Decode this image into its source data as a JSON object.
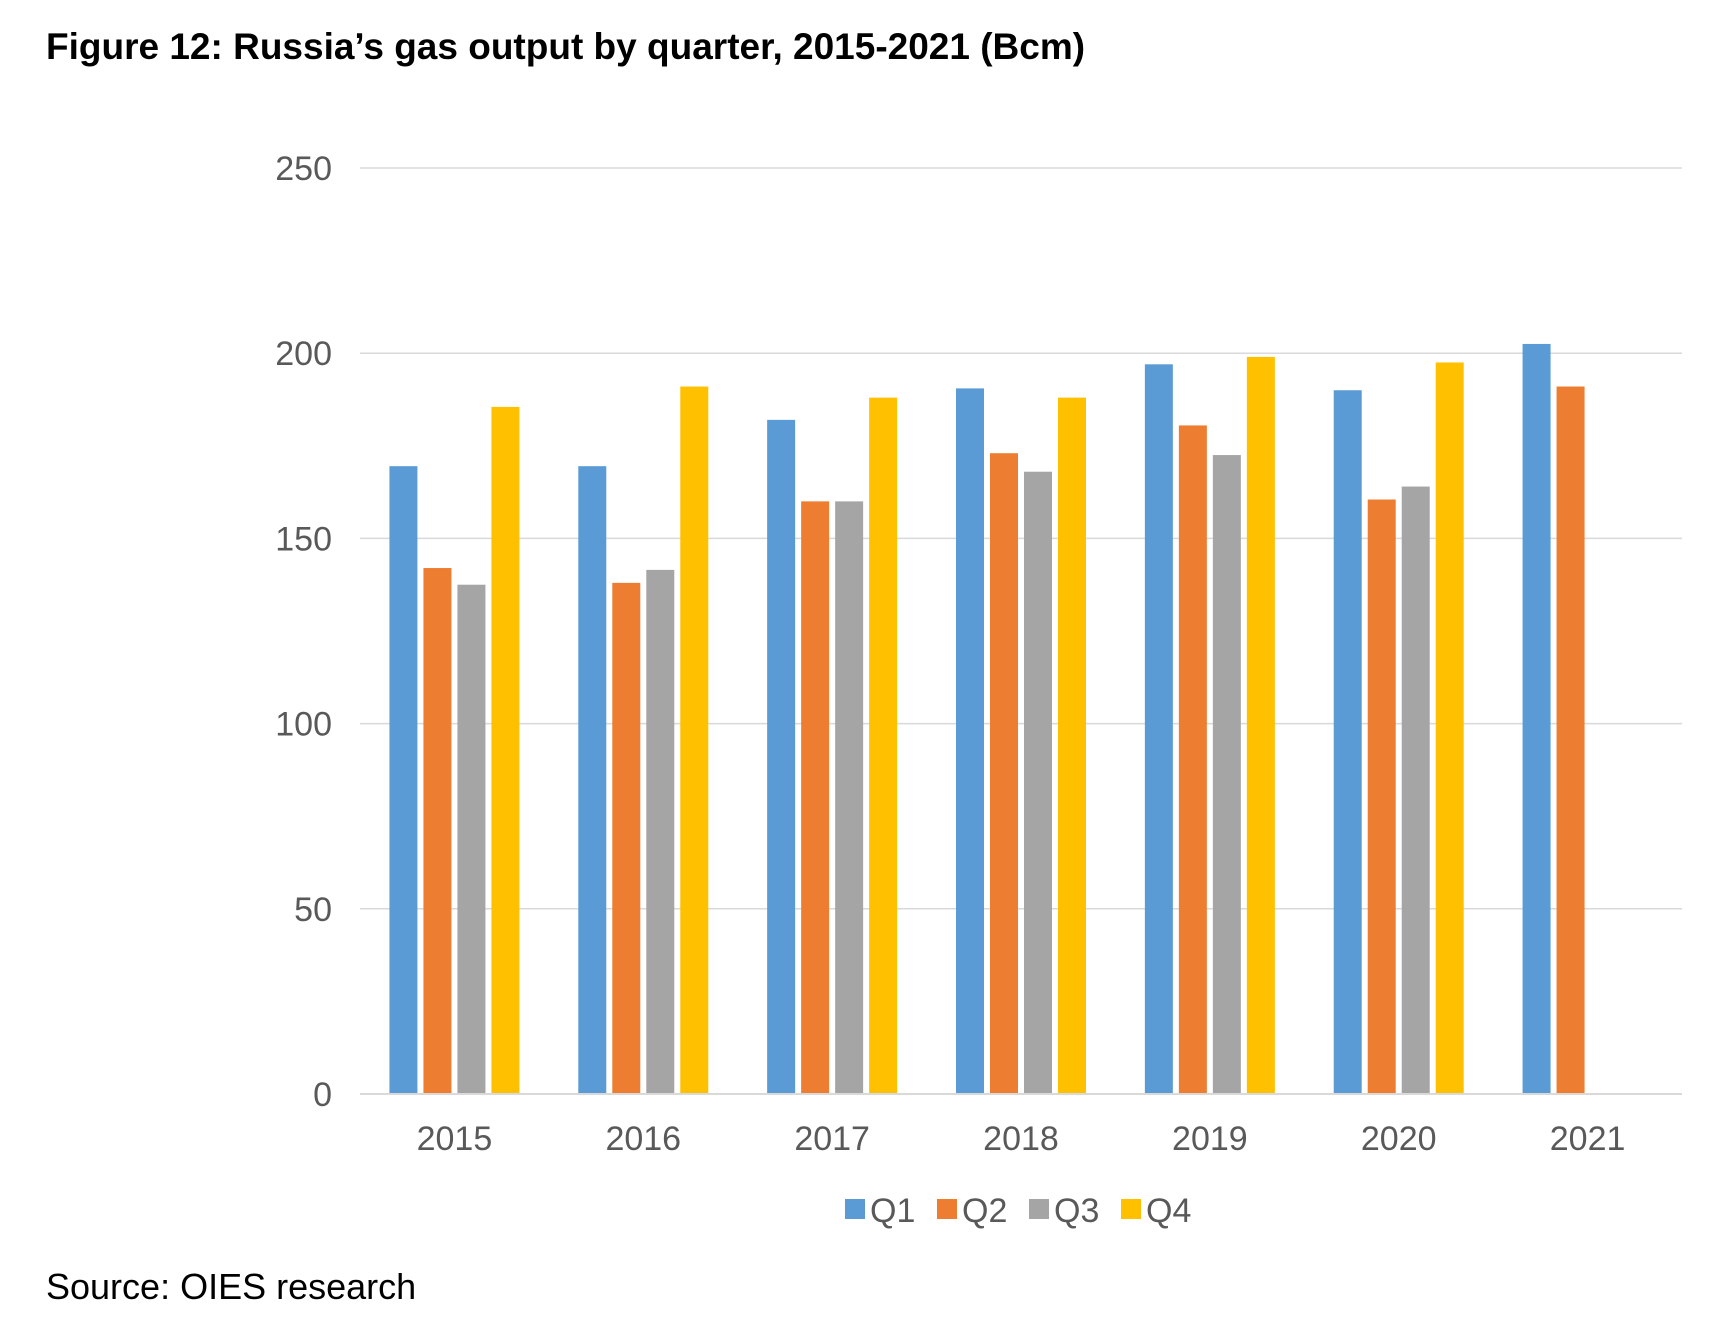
{
  "title": "Figure 12: Russia’s gas output by quarter, 2015-2021 (Bcm)",
  "source": "Source: OIES research",
  "chart_data": {
    "type": "bar",
    "title": "",
    "xlabel": "",
    "ylabel": "",
    "categories": [
      "2015",
      "2016",
      "2017",
      "2018",
      "2019",
      "2020",
      "2021"
    ],
    "ylim": [
      0,
      250
    ],
    "yticks": [
      "0",
      "50",
      "100",
      "150",
      "200",
      "250"
    ],
    "grid": true,
    "legend_position": "bottom",
    "series": [
      {
        "name": "Q1",
        "color": "#5B9BD5",
        "values": [
          169.5,
          169.5,
          182,
          190.5,
          197,
          190,
          202.5
        ]
      },
      {
        "name": "Q2",
        "color": "#ED7D31",
        "values": [
          142,
          138,
          160,
          173,
          180.5,
          160.5,
          191
        ]
      },
      {
        "name": "Q3",
        "color": "#A5A5A5",
        "values": [
          137.5,
          141.5,
          160,
          168,
          172.5,
          164,
          null
        ]
      },
      {
        "name": "Q4",
        "color": "#FFC000",
        "values": [
          185.5,
          191,
          188,
          188,
          199,
          197.5,
          null
        ]
      }
    ]
  }
}
